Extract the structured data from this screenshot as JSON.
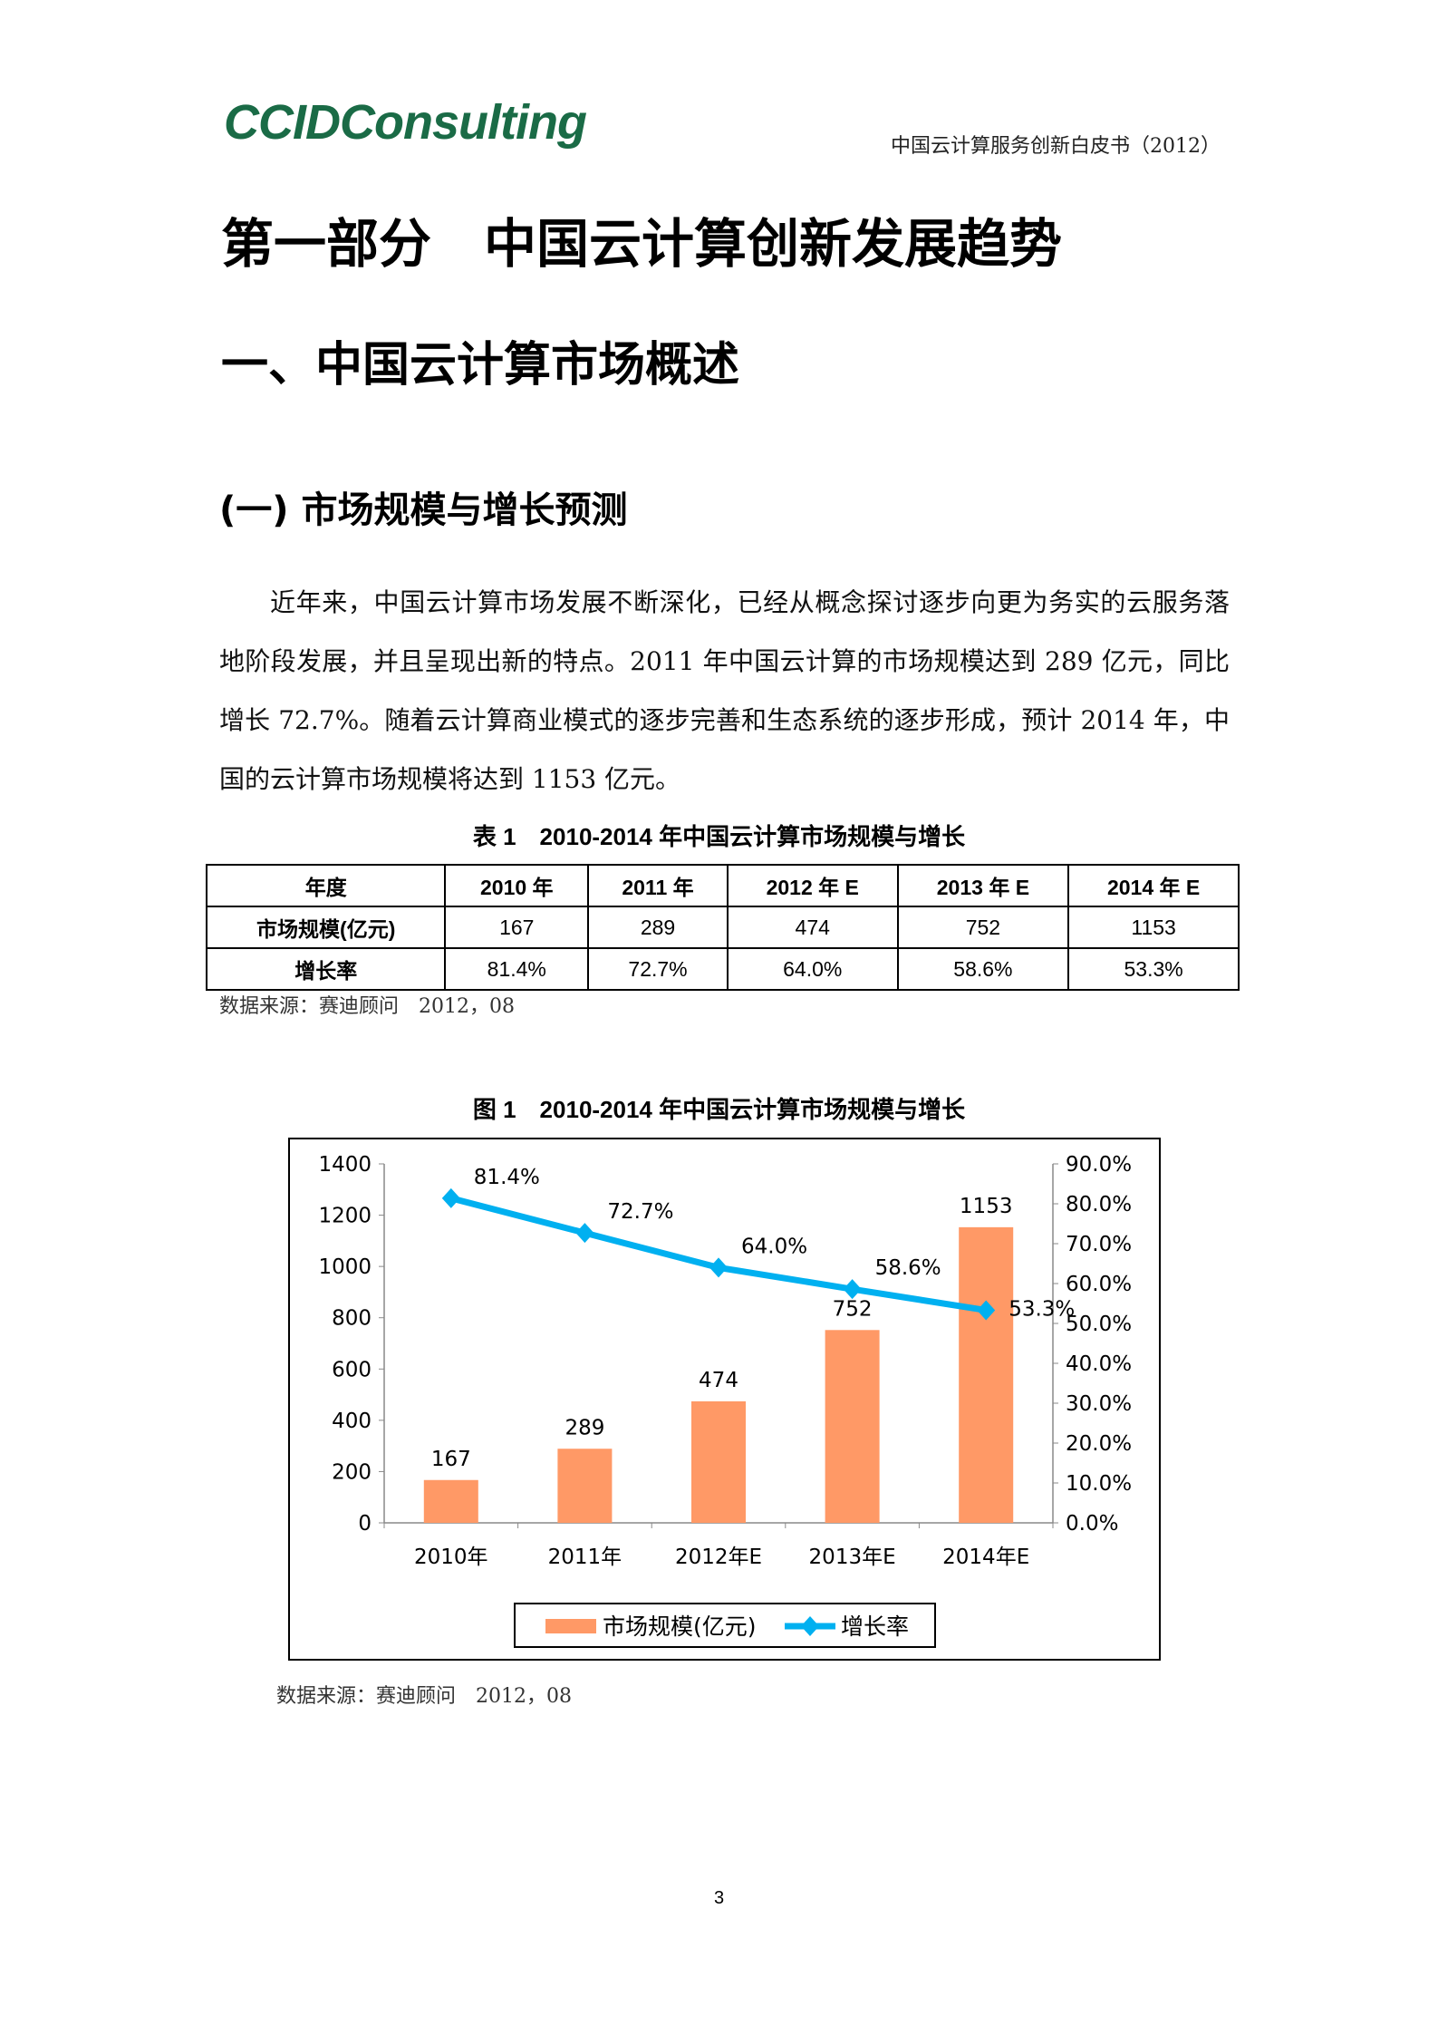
{
  "header": {
    "logo_text": "CCIDConsulting",
    "doc_title": "中国云计算服务创新白皮书（2012）"
  },
  "headings": {
    "part": "第一部分　中国云计算创新发展趋势",
    "section": "一、中国云计算市场概述",
    "subsection": "(一) 市场规模与增长预测"
  },
  "paragraph": "近年来，中国云计算市场发展不断深化，已经从概念探讨逐步向更为务实的云服务落地阶段发展，并且呈现出新的特点。2011 年中国云计算的市场规模达到 289 亿元，同比增长 72.7%。随着云计算商业模式的逐步完善和生态系统的逐步形成，预计 2014 年，中国的云计算市场规模将达到 1153 亿元。",
  "table": {
    "caption": "表 1　2010-2014 年中国云计算市场规模与增长",
    "header": [
      "年度",
      "2010 年",
      "2011 年",
      "2012 年 E",
      "2013 年 E",
      "2014 年 E"
    ],
    "rows": [
      [
        "市场规模(亿元)",
        "167",
        "289",
        "474",
        "752",
        "1153"
      ],
      [
        "增长率",
        "81.4%",
        "72.7%",
        "64.0%",
        "58.6%",
        "53.3%"
      ]
    ],
    "source": "数据来源：赛迪顾问　2012，08"
  },
  "figure": {
    "caption": "图 1　2010-2014 年中国云计算市场规模与增长",
    "source": "数据来源：赛迪顾问　2012，08"
  },
  "chart_data": {
    "type": "bar+line",
    "categories": [
      "2010年",
      "2011年",
      "2012年E",
      "2013年E",
      "2014年E"
    ],
    "series": [
      {
        "name": "市场规模(亿元)",
        "type": "bar",
        "axis": "left",
        "values": [
          167,
          289,
          474,
          752,
          1153
        ],
        "labels": [
          "167",
          "289",
          "474",
          "752",
          "1153"
        ],
        "color": "#ff9966"
      },
      {
        "name": "增长率",
        "type": "line",
        "axis": "right",
        "values": [
          81.4,
          72.7,
          64.0,
          58.6,
          53.3
        ],
        "labels": [
          "81.4%",
          "72.7%",
          "64.0%",
          "58.6%",
          "53.3%"
        ],
        "color": "#00b0f0"
      }
    ],
    "y_left": {
      "range": [
        0,
        1400
      ],
      "ticks": [
        "0",
        "200",
        "400",
        "600",
        "800",
        "1000",
        "1200",
        "1400"
      ]
    },
    "y_right": {
      "range": [
        0,
        90
      ],
      "ticks": [
        "0.0%",
        "10.0%",
        "20.0%",
        "30.0%",
        "40.0%",
        "50.0%",
        "60.0%",
        "70.0%",
        "80.0%",
        "90.0%"
      ]
    },
    "grid": false,
    "legend": "bottom"
  },
  "page_number": "3"
}
